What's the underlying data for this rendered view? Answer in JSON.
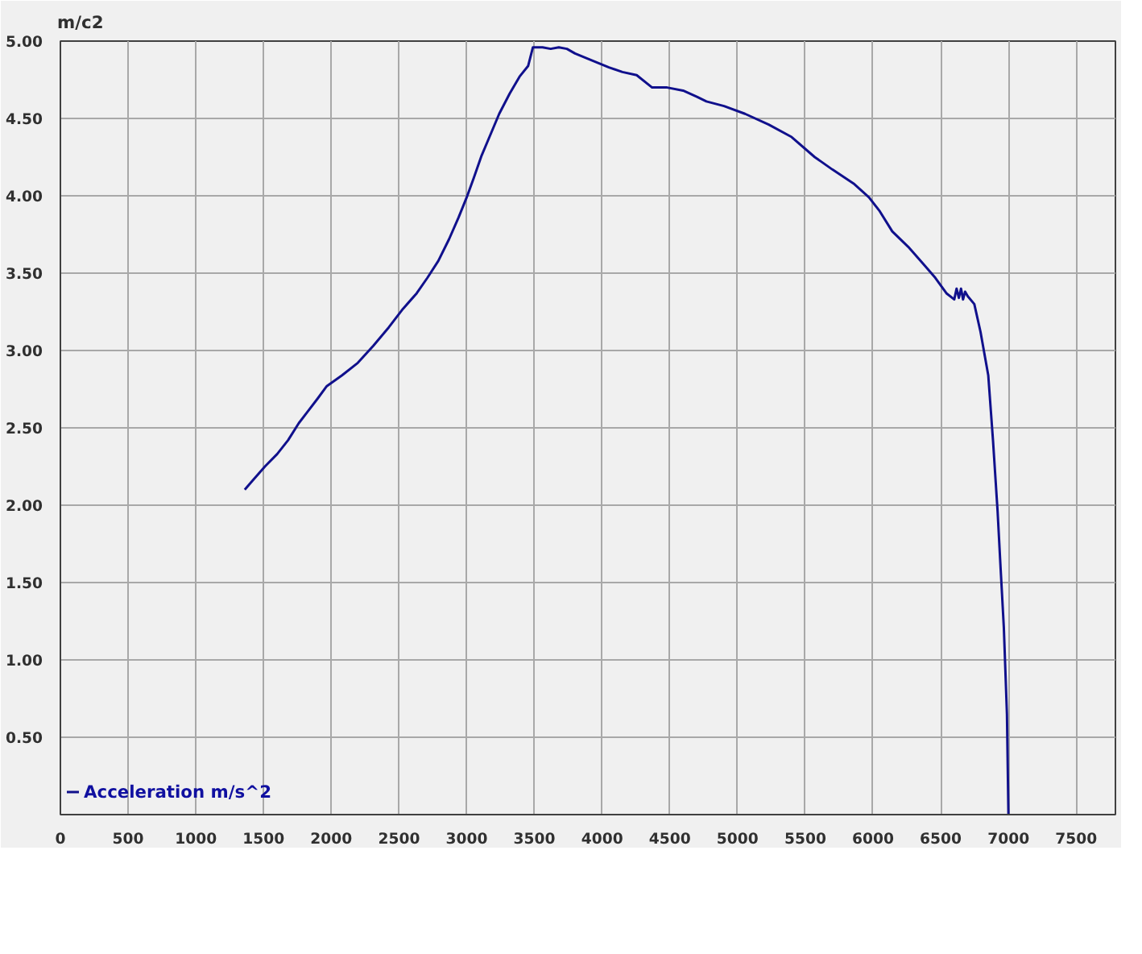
{
  "chart_data": {
    "type": "line",
    "ylabel": "m/c2",
    "series": [
      {
        "name": "Acceleration m/s^2",
        "color": "#10108c",
        "x": [
          1361,
          1420,
          1510,
          1600,
          1681,
          1760,
          1830,
          1900,
          1967,
          2080,
          2196,
          2310,
          2425,
          2530,
          2631,
          2710,
          2791,
          2870,
          2940,
          3000,
          3054,
          3110,
          3168,
          3240,
          3317,
          3390,
          3454,
          3489,
          3560,
          3620,
          3680,
          3740,
          3800,
          3912,
          4050,
          4150,
          4255,
          4369,
          4480,
          4598,
          4700,
          4770,
          4900,
          5055,
          5230,
          5399,
          5570,
          5700,
          5856,
          5970,
          6050,
          6142,
          6260,
          6371,
          6460,
          6542,
          6600,
          6617,
          6634,
          6650,
          6665,
          6680,
          6700,
          6748,
          6794,
          6851,
          6886,
          6920,
          6943,
          6966,
          6989,
          7000
        ],
        "values": [
          2.1,
          2.16,
          2.25,
          2.33,
          2.42,
          2.53,
          2.61,
          2.69,
          2.77,
          2.84,
          2.92,
          3.03,
          3.15,
          3.27,
          3.37,
          3.47,
          3.58,
          3.72,
          3.86,
          3.99,
          4.12,
          4.26,
          4.38,
          4.53,
          4.66,
          4.77,
          4.84,
          4.96,
          4.96,
          4.95,
          4.96,
          4.95,
          4.92,
          4.88,
          4.83,
          4.8,
          4.78,
          4.7,
          4.7,
          4.68,
          4.64,
          4.61,
          4.58,
          4.53,
          4.46,
          4.38,
          4.25,
          4.17,
          4.08,
          3.99,
          3.9,
          3.77,
          3.67,
          3.56,
          3.47,
          3.37,
          3.33,
          3.4,
          3.34,
          3.4,
          3.33,
          3.38,
          3.35,
          3.3,
          3.12,
          2.84,
          2.42,
          1.96,
          1.58,
          1.21,
          0.65,
          0.0
        ]
      }
    ],
    "xlim": [
      0,
      7790
    ],
    "ylim": [
      0,
      5
    ],
    "xticks": [
      0,
      500,
      1000,
      1500,
      2000,
      2500,
      3000,
      3500,
      4000,
      4500,
      5000,
      5500,
      6000,
      6500,
      7000,
      7500
    ],
    "yticks": [
      {
        "value": 0.5,
        "label": "0.50"
      },
      {
        "value": 1.0,
        "label": "1.00"
      },
      {
        "value": 1.5,
        "label": "1.50"
      },
      {
        "value": 2.0,
        "label": "2.00"
      },
      {
        "value": 2.5,
        "label": "2.50"
      },
      {
        "value": 3.0,
        "label": "3.00"
      },
      {
        "value": 3.5,
        "label": "3.50"
      },
      {
        "value": 4.0,
        "label": "4.00"
      },
      {
        "value": 4.5,
        "label": "4.50"
      },
      {
        "value": 5.0,
        "label": "5.00"
      }
    ],
    "grid": true,
    "legend": "bottom left",
    "marker": "none",
    "line_style": "solid"
  }
}
